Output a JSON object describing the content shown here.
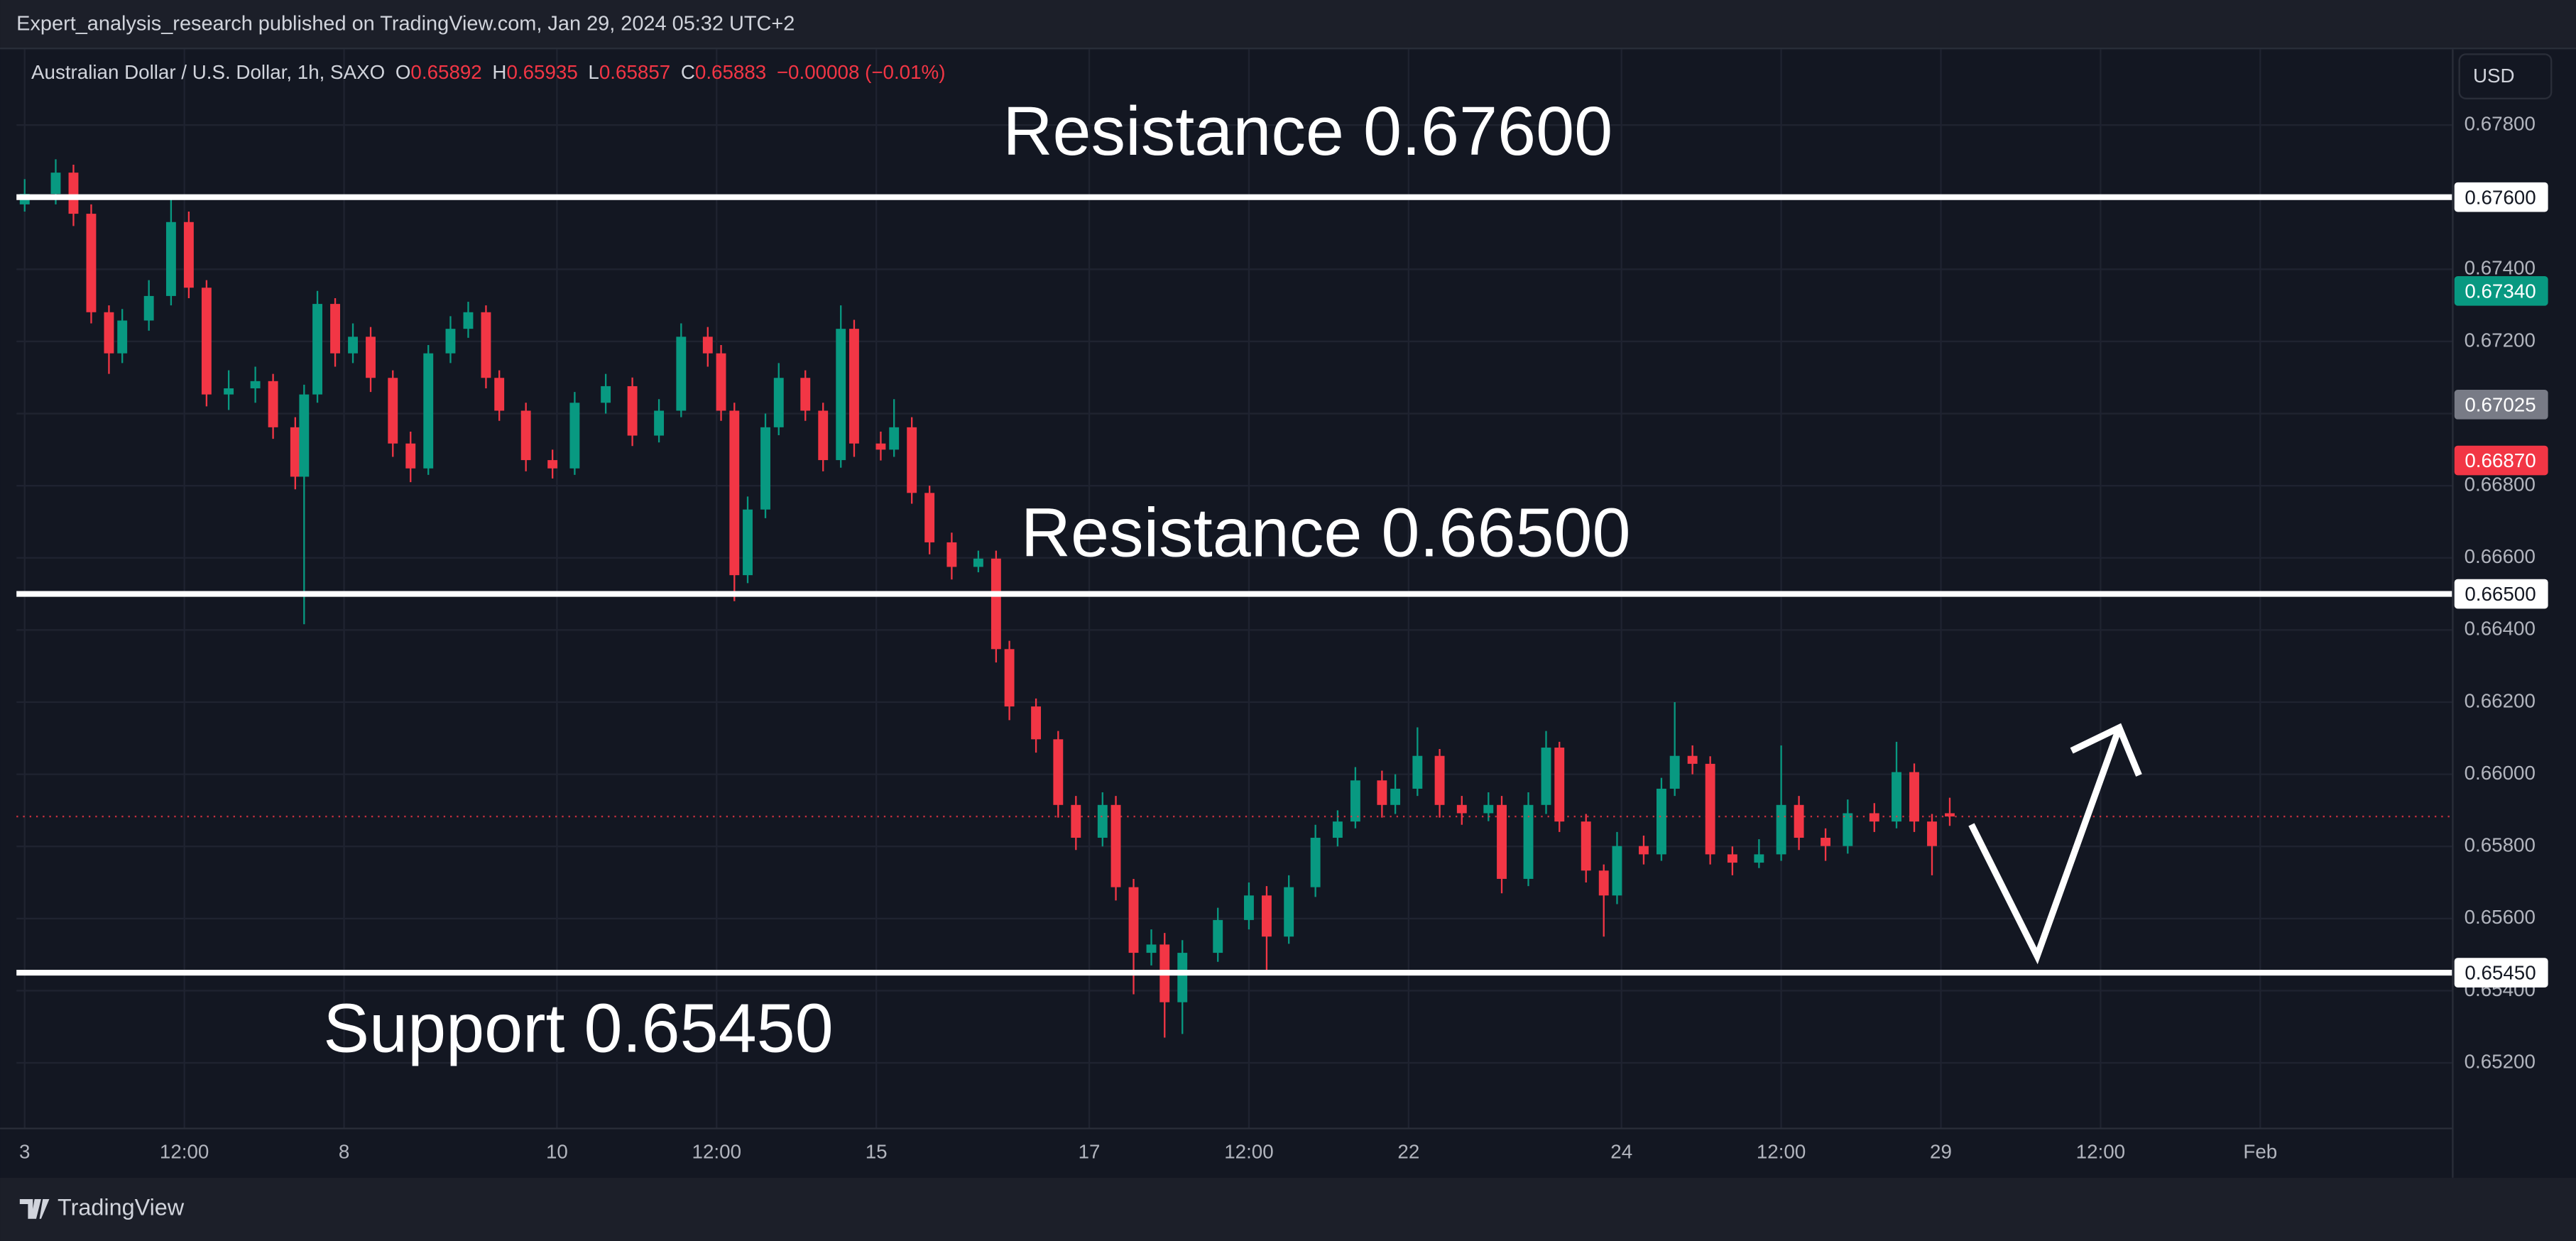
{
  "chart_data": {
    "type": "candlestick",
    "header": "Expert_analysis_research published on TradingView.com, Jan 29, 2024 05:32 UTC+2",
    "symbol": "Australian Dollar / U.S. Dollar, 1h, SAXO",
    "ohlc": [
      {
        "key": "O",
        "value": "0.65892"
      },
      {
        "key": "H",
        "value": "0.65935"
      },
      {
        "key": "L",
        "value": "0.65857"
      },
      {
        "key": "C",
        "value": "0.65883"
      }
    ],
    "change": "−0.00008 (−0.01%)",
    "currency": "USD",
    "brand": "TradingView",
    "up_color": "#089981",
    "down_color": "#f23645",
    "grid": true,
    "xlim": [
      -1.85,
      547.4
    ],
    "xticks": [
      {
        "value": 0,
        "label": "3"
      },
      {
        "value": 36,
        "label": "12:00"
      },
      {
        "value": 72,
        "label": "8"
      },
      {
        "value": 120,
        "label": "10"
      },
      {
        "value": 156,
        "label": "12:00"
      },
      {
        "value": 192,
        "label": "15"
      },
      {
        "value": 240,
        "label": "17"
      },
      {
        "value": 276,
        "label": "12:00"
      },
      {
        "value": 312,
        "label": "22"
      },
      {
        "value": 360,
        "label": "24"
      },
      {
        "value": 396,
        "label": "12:00"
      },
      {
        "value": 432,
        "label": "29"
      },
      {
        "value": 468,
        "label": "12:00"
      },
      {
        "value": 504,
        "label": "Feb"
      }
    ],
    "ylim": [
      0.65018,
      0.6801
    ],
    "yticks": [
      {
        "value": 0.652,
        "label": "0.65200"
      },
      {
        "value": 0.654,
        "label": "0.65400"
      },
      {
        "value": 0.656,
        "label": "0.65600"
      },
      {
        "value": 0.658,
        "label": "0.65800"
      },
      {
        "value": 0.66,
        "label": "0.66000"
      },
      {
        "value": 0.662,
        "label": "0.66200"
      },
      {
        "value": 0.664,
        "label": "0.66400"
      },
      {
        "value": 0.666,
        "label": "0.66600"
      },
      {
        "value": 0.668,
        "label": "0.66800"
      },
      {
        "value": 0.67,
        "label": "0.67000"
      },
      {
        "value": 0.672,
        "label": "0.67200"
      },
      {
        "value": 0.674,
        "label": "0.67400"
      },
      {
        "value": 0.676,
        "label": "0.67600"
      },
      {
        "value": 0.678,
        "label": "0.67800"
      }
    ],
    "levels": [
      {
        "value": 0.676,
        "label": "0.67600",
        "annotation": "Resistance 0.67600"
      },
      {
        "value": 0.665,
        "label": "0.66500",
        "annotation": "Resistance 0.66500"
      },
      {
        "value": 0.6545,
        "label": "0.65450",
        "annotation": "Support 0.65450"
      }
    ],
    "price_markers": [
      {
        "value": 0.6734,
        "label": "0.67340",
        "color": "#089981"
      },
      {
        "value": 0.67025,
        "label": "0.67025",
        "color": "#787b86"
      },
      {
        "value": 0.6687,
        "label": "0.66870",
        "color": "#f23645"
      }
    ],
    "candles": [
      [
        0,
        0.6758,
        0.6765,
        0.6756,
        0.67609
      ],
      [
        7,
        0.67609,
        0.67705,
        0.6758,
        0.67668
      ],
      [
        11,
        0.67668,
        0.6769,
        0.6752,
        0.67554
      ],
      [
        15,
        0.67554,
        0.6758,
        0.6725,
        0.67281
      ],
      [
        19,
        0.67281,
        0.673,
        0.6711,
        0.67167
      ],
      [
        22,
        0.67167,
        0.6729,
        0.6714,
        0.67258
      ],
      [
        28,
        0.67258,
        0.6737,
        0.6723,
        0.67326
      ],
      [
        33,
        0.67326,
        0.676,
        0.673,
        0.67531
      ],
      [
        37,
        0.67531,
        0.6756,
        0.6732,
        0.67349
      ],
      [
        41,
        0.67349,
        0.6737,
        0.6702,
        0.67053
      ],
      [
        46,
        0.67053,
        0.6712,
        0.6701,
        0.6707
      ],
      [
        52,
        0.6707,
        0.6713,
        0.6703,
        0.6709
      ],
      [
        56,
        0.6709,
        0.6711,
        0.6693,
        0.66962
      ],
      [
        61,
        0.66962,
        0.6699,
        0.6679,
        0.66825
      ],
      [
        63,
        0.66825,
        0.6708,
        0.66416,
        0.67053
      ],
      [
        66,
        0.67053,
        0.6734,
        0.6703,
        0.67304
      ],
      [
        70,
        0.67304,
        0.6732,
        0.6713,
        0.67167
      ],
      [
        74,
        0.67167,
        0.6725,
        0.6714,
        0.67213
      ],
      [
        78,
        0.67213,
        0.6724,
        0.6706,
        0.67099
      ],
      [
        83,
        0.67099,
        0.6712,
        0.6688,
        0.66917
      ],
      [
        87,
        0.66917,
        0.6695,
        0.6681,
        0.66848
      ],
      [
        91,
        0.66848,
        0.6719,
        0.6683,
        0.67167
      ],
      [
        96,
        0.67167,
        0.6727,
        0.6714,
        0.67235
      ],
      [
        100,
        0.67235,
        0.6731,
        0.6721,
        0.67281
      ],
      [
        104,
        0.67281,
        0.673,
        0.6707,
        0.67099
      ],
      [
        107,
        0.67099,
        0.6712,
        0.6698,
        0.67008
      ],
      [
        113,
        0.67008,
        0.6703,
        0.6684,
        0.66871
      ],
      [
        119,
        0.66871,
        0.669,
        0.6682,
        0.66848
      ],
      [
        124,
        0.66848,
        0.6706,
        0.6683,
        0.6703
      ],
      [
        131,
        0.6703,
        0.6711,
        0.67,
        0.67076
      ],
      [
        137,
        0.67076,
        0.671,
        0.6691,
        0.66939
      ],
      [
        143,
        0.66939,
        0.6704,
        0.6692,
        0.67008
      ],
      [
        148,
        0.67008,
        0.6725,
        0.6699,
        0.67213
      ],
      [
        154,
        0.67213,
        0.6724,
        0.6713,
        0.67167
      ],
      [
        157,
        0.67167,
        0.6719,
        0.6698,
        0.67008
      ],
      [
        160,
        0.67008,
        0.6703,
        0.6648,
        0.66552
      ],
      [
        163,
        0.66552,
        0.6677,
        0.6653,
        0.66734
      ],
      [
        167,
        0.66734,
        0.67,
        0.6671,
        0.66962
      ],
      [
        170,
        0.66962,
        0.6714,
        0.6694,
        0.67099
      ],
      [
        176,
        0.67099,
        0.6712,
        0.6698,
        0.67008
      ],
      [
        180,
        0.67008,
        0.6703,
        0.6684,
        0.66871
      ],
      [
        184,
        0.66871,
        0.673,
        0.6685,
        0.67235
      ],
      [
        187,
        0.67235,
        0.6726,
        0.6688,
        0.66917
      ],
      [
        193,
        0.66917,
        0.6695,
        0.6687,
        0.669
      ],
      [
        196,
        0.669,
        0.6704,
        0.6688,
        0.66962
      ],
      [
        200,
        0.66962,
        0.6699,
        0.6675,
        0.6678
      ],
      [
        204,
        0.6678,
        0.668,
        0.6661,
        0.66643
      ],
      [
        209,
        0.66643,
        0.6667,
        0.6654,
        0.66575
      ],
      [
        215,
        0.66575,
        0.6662,
        0.6656,
        0.66598
      ],
      [
        219,
        0.66598,
        0.6662,
        0.6631,
        0.66347
      ],
      [
        222,
        0.66347,
        0.6637,
        0.6615,
        0.66188
      ],
      [
        228,
        0.66188,
        0.6621,
        0.6606,
        0.66097
      ],
      [
        233,
        0.66097,
        0.6612,
        0.6588,
        0.65915
      ],
      [
        237,
        0.65915,
        0.6594,
        0.6579,
        0.65824
      ],
      [
        243,
        0.65824,
        0.6595,
        0.658,
        0.65915
      ],
      [
        246,
        0.65915,
        0.6594,
        0.6565,
        0.65687
      ],
      [
        250,
        0.65687,
        0.6571,
        0.6539,
        0.65505
      ],
      [
        254,
        0.65505,
        0.6557,
        0.6547,
        0.65528
      ],
      [
        257,
        0.65528,
        0.6556,
        0.6527,
        0.65368
      ],
      [
        261,
        0.65368,
        0.6554,
        0.6528,
        0.65505
      ],
      [
        269,
        0.65505,
        0.6563,
        0.6548,
        0.65596
      ],
      [
        276,
        0.65596,
        0.657,
        0.6557,
        0.65664
      ],
      [
        280,
        0.65664,
        0.6569,
        0.6545,
        0.6555
      ],
      [
        285,
        0.6555,
        0.6572,
        0.6553,
        0.65687
      ],
      [
        291,
        0.65687,
        0.6586,
        0.6566,
        0.65824
      ],
      [
        296,
        0.65824,
        0.659,
        0.658,
        0.65869
      ],
      [
        300,
        0.65869,
        0.6602,
        0.6585,
        0.65983
      ],
      [
        306,
        0.65983,
        0.6601,
        0.6588,
        0.65915
      ],
      [
        309,
        0.65915,
        0.66,
        0.6589,
        0.6596
      ],
      [
        314,
        0.6596,
        0.6613,
        0.6594,
        0.66051
      ],
      [
        319,
        0.66051,
        0.6607,
        0.6588,
        0.65915
      ],
      [
        324,
        0.65915,
        0.6594,
        0.6586,
        0.65892
      ],
      [
        330,
        0.65892,
        0.6595,
        0.6587,
        0.65915
      ],
      [
        333,
        0.65915,
        0.6594,
        0.6567,
        0.6571
      ],
      [
        339,
        0.6571,
        0.6595,
        0.6569,
        0.65915
      ],
      [
        343,
        0.65915,
        0.6612,
        0.6589,
        0.66074
      ],
      [
        346,
        0.66074,
        0.6609,
        0.6584,
        0.65869
      ],
      [
        352,
        0.65869,
        0.6589,
        0.657,
        0.65733
      ],
      [
        356,
        0.65733,
        0.6575,
        0.6555,
        0.65664
      ],
      [
        359,
        0.65664,
        0.6584,
        0.6564,
        0.65801
      ],
      [
        365,
        0.65801,
        0.6583,
        0.6575,
        0.65778
      ],
      [
        369,
        0.65778,
        0.6599,
        0.6576,
        0.6596
      ],
      [
        372,
        0.6596,
        0.662,
        0.6594,
        0.66051
      ],
      [
        376,
        0.66051,
        0.6608,
        0.66,
        0.66029
      ],
      [
        380,
        0.66029,
        0.6605,
        0.6575,
        0.65778
      ],
      [
        385,
        0.65778,
        0.658,
        0.6572,
        0.65755
      ],
      [
        391,
        0.65755,
        0.6582,
        0.6574,
        0.65778
      ],
      [
        396,
        0.65778,
        0.6608,
        0.6576,
        0.65915
      ],
      [
        400,
        0.65915,
        0.6594,
        0.6579,
        0.65824
      ],
      [
        406,
        0.65824,
        0.6585,
        0.6576,
        0.65801
      ],
      [
        411,
        0.65801,
        0.6593,
        0.6578,
        0.65892
      ],
      [
        417,
        0.65892,
        0.6592,
        0.6584,
        0.65869
      ],
      [
        422,
        0.65869,
        0.6609,
        0.6585,
        0.66006
      ],
      [
        426,
        0.66006,
        0.6603,
        0.6584,
        0.65869
      ],
      [
        430,
        0.65869,
        0.6589,
        0.6572,
        0.65801
      ],
      [
        434,
        0.65892,
        0.65935,
        0.65857,
        0.65883
      ]
    ]
  }
}
